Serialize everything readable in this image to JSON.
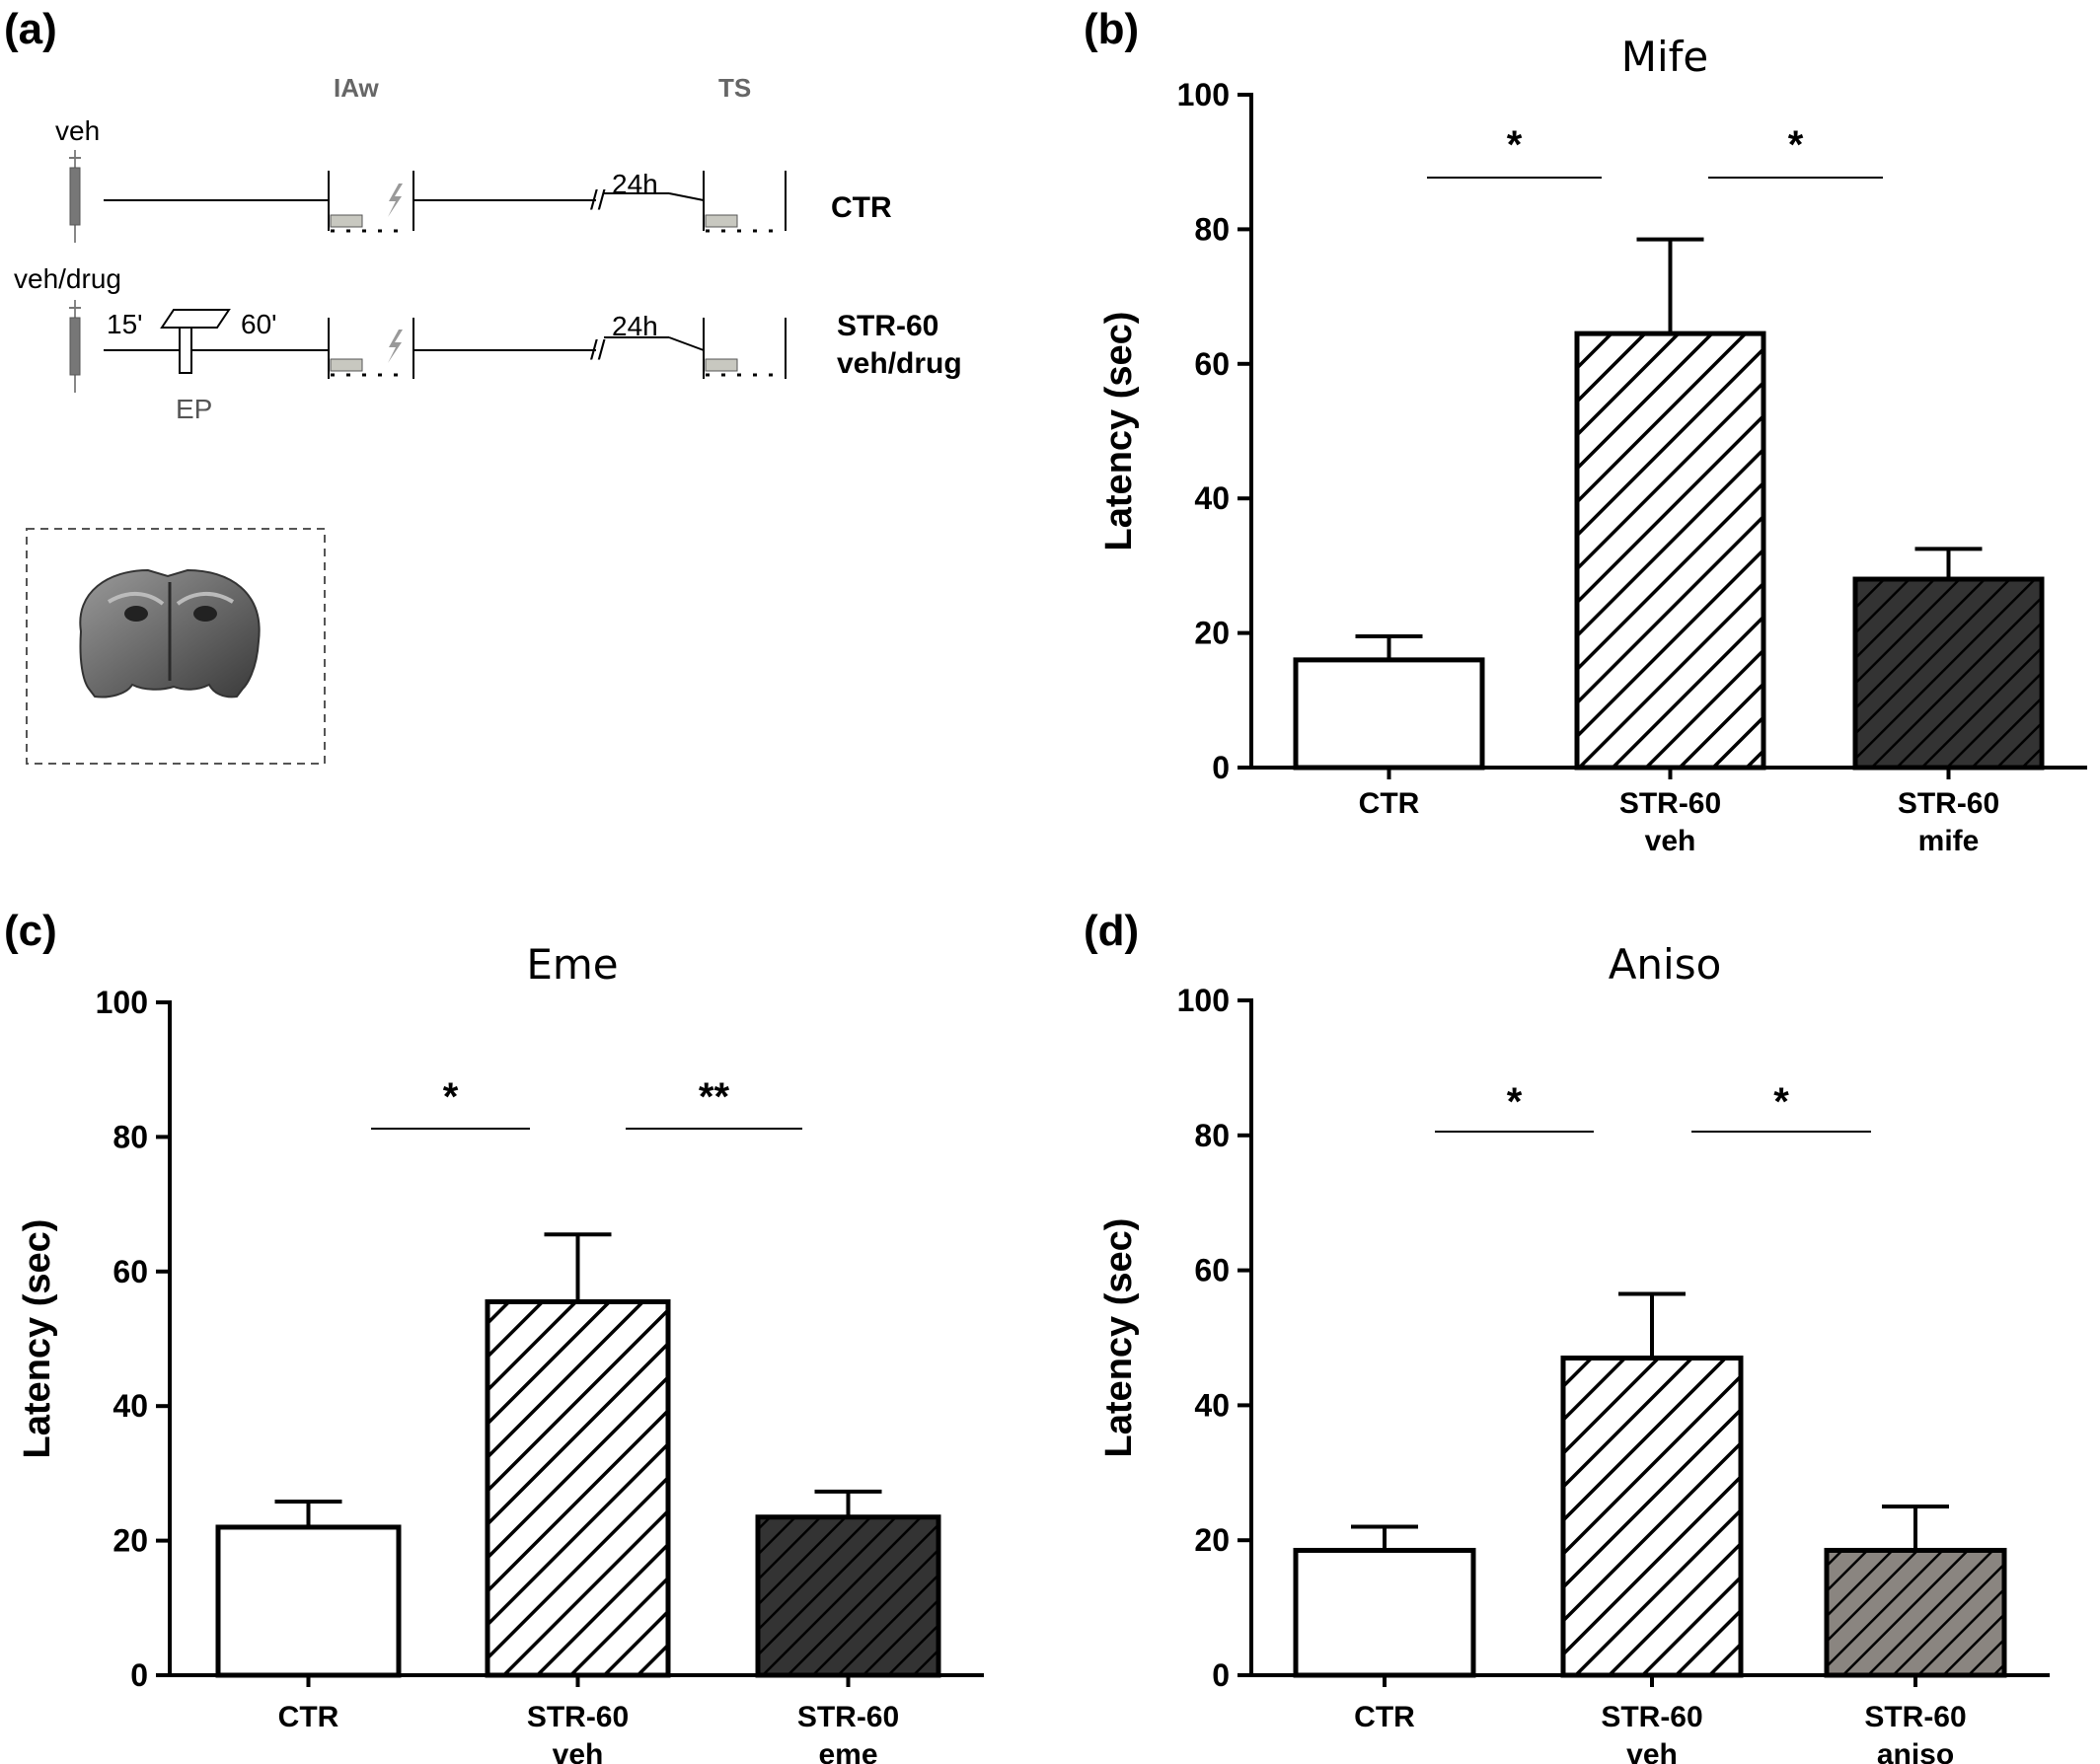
{
  "panel_labels": [
    "(a)",
    "(b)",
    "(c)",
    "(d)"
  ],
  "schematic": {
    "phase_labels": {
      "training": "IAw",
      "test": "TS"
    },
    "row1": {
      "injection": "veh",
      "delay": "24h",
      "group": "CTR"
    },
    "row2": {
      "injection": "veh/drug",
      "before": "15'",
      "after": "60'",
      "platform": "EP",
      "delay": "24h",
      "group_line1": "STR-60",
      "group_line2": "veh/drug"
    }
  },
  "chart_data": [
    {
      "type": "bar",
      "panel": "(b)",
      "title": "Mife",
      "ylabel": "Latency (sec)",
      "ylim": [
        0,
        100
      ],
      "yticks": [
        0,
        20,
        40,
        60,
        80,
        100
      ],
      "categories": [
        [
          "CTR"
        ],
        [
          "STR-60",
          "veh"
        ],
        [
          "STR-60",
          "mife"
        ]
      ],
      "values": [
        16,
        64.5,
        28
      ],
      "errors": [
        3.5,
        14,
        4.5
      ],
      "bar_styles": [
        "open",
        "hatched-white",
        "hatched-dark"
      ],
      "significance": [
        {
          "from": 0,
          "to": 1,
          "label": "*"
        },
        {
          "from": 1,
          "to": 2,
          "label": "*"
        }
      ]
    },
    {
      "type": "bar",
      "panel": "(c)",
      "title": "Eme",
      "ylabel": "Latency (sec)",
      "ylim": [
        0,
        100
      ],
      "yticks": [
        0,
        20,
        40,
        60,
        80,
        100
      ],
      "categories": [
        [
          "CTR"
        ],
        [
          "STR-60",
          "veh"
        ],
        [
          "STR-60",
          "eme"
        ]
      ],
      "values": [
        22,
        55.5,
        23.5
      ],
      "errors": [
        3.8,
        10,
        3.8
      ],
      "bar_styles": [
        "open",
        "hatched-white",
        "hatched-dark"
      ],
      "significance": [
        {
          "from": 0,
          "to": 1,
          "label": "*"
        },
        {
          "from": 1,
          "to": 2,
          "label": "**"
        }
      ]
    },
    {
      "type": "bar",
      "panel": "(d)",
      "title": "Aniso",
      "ylabel": "Latency (sec)",
      "ylim": [
        0,
        100
      ],
      "yticks": [
        0,
        20,
        40,
        60,
        80,
        100
      ],
      "categories": [
        [
          "CTR"
        ],
        [
          "STR-60",
          "veh"
        ],
        [
          "STR-60",
          "aniso"
        ]
      ],
      "values": [
        18.5,
        47,
        18.5
      ],
      "errors": [
        3.5,
        9.5,
        6.5
      ],
      "bar_styles": [
        "open",
        "hatched-white",
        "hatched-gray"
      ],
      "significance": [
        {
          "from": 0,
          "to": 1,
          "label": "*"
        },
        {
          "from": 1,
          "to": 2,
          "label": "*"
        }
      ]
    }
  ],
  "colors": {
    "axis": "#000000",
    "hatched_dark_fill": "#333333",
    "hatched_gray_fill": "#8a8580",
    "phase_label": "#666666",
    "box_fill": "#c8c8c0",
    "bolt": "#999999"
  }
}
